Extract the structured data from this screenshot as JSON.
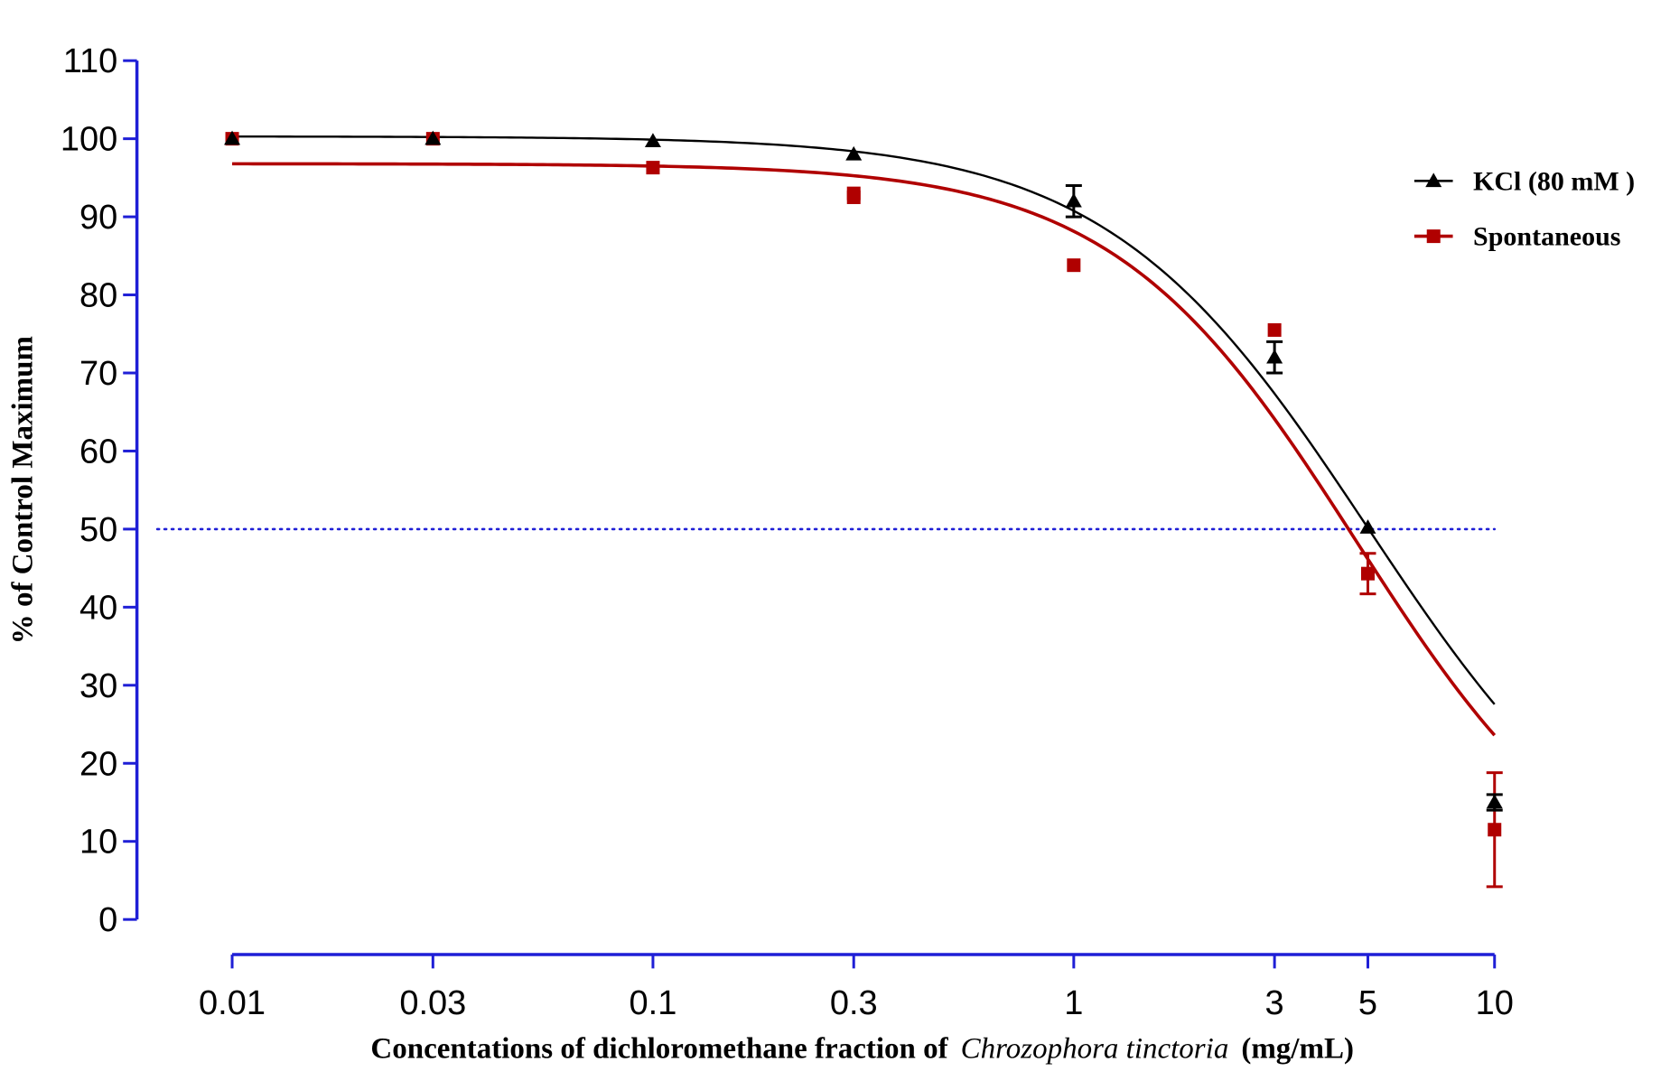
{
  "chart_data": {
    "type": "line",
    "xlabel_main": "Concentations of dichloromethane fraction of",
    "xlabel_italic": "Chrozophora tinctoria",
    "xlabel_unit": "(mg/mL)",
    "ylabel": "% of Control Maximum",
    "x_scale": "log",
    "xlim": [
      0.01,
      10
    ],
    "ylim": [
      0,
      110
    ],
    "x_ticks": [
      0.01,
      0.03,
      0.1,
      0.3,
      1,
      3,
      5,
      10
    ],
    "x_tick_labels": [
      "0.01",
      "0.03",
      "0.1",
      "0.3",
      "1",
      "3",
      "5",
      "10"
    ],
    "y_ticks": [
      0,
      10,
      20,
      30,
      40,
      50,
      60,
      70,
      80,
      90,
      100,
      110
    ],
    "y_tick_labels": [
      "0",
      "10",
      "20",
      "30",
      "40",
      "50",
      "60",
      "70",
      "80",
      "90",
      "100",
      "110"
    ],
    "reference_line": {
      "y": 50,
      "style": "dotted",
      "color": "#1f1fd6"
    },
    "axis_color": "#1f1fd6",
    "legend_position": "top-right",
    "series": [
      {
        "name": "KCl (80 mM )",
        "marker": "triangle",
        "color": "#000000",
        "x": [
          0.01,
          0.03,
          0.1,
          0.3,
          1,
          3,
          5,
          10
        ],
        "y": [
          100,
          100,
          99.7,
          98,
          92,
          72,
          50.2,
          15
        ],
        "err": [
          0,
          0,
          0,
          0,
          2,
          2,
          0,
          1
        ],
        "fit": {
          "top": 100.3,
          "bottom": 0,
          "ec50": 5.0,
          "hill": 1.4
        }
      },
      {
        "name": "Spontaneous",
        "marker": "square",
        "color": "#b00000",
        "x": [
          0.01,
          0.03,
          0.1,
          0.3,
          0.3,
          1,
          3,
          5,
          10
        ],
        "y": [
          100,
          100,
          96.3,
          93,
          92.5,
          83.8,
          75.5,
          44.3,
          11.5
        ],
        "err": [
          0,
          0,
          0,
          0,
          0,
          0,
          0,
          2.6,
          7.3
        ],
        "fit": {
          "top": 96.8,
          "bottom": 0,
          "ec50": 4.7,
          "hill": 1.5
        }
      }
    ]
  }
}
